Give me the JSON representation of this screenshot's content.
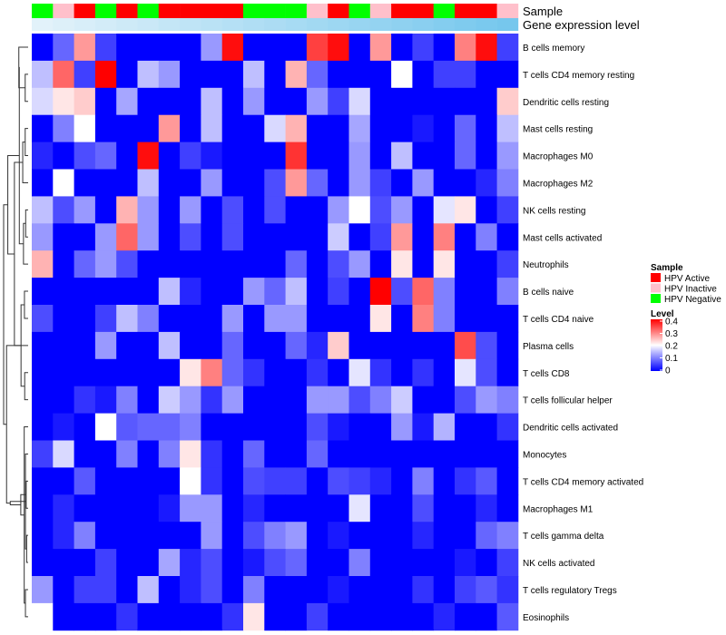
{
  "chart_data": {
    "type": "heatmap",
    "title": "",
    "annotation_tracks": [
      "Sample",
      "Gene expression level"
    ],
    "rows": [
      "B cells memory",
      "T cells CD4 memory resting",
      "Dendritic cells resting",
      "Mast cells resting",
      "Macrophages M0",
      "Macrophages M2",
      "NK cells resting",
      "Mast cells activated",
      "Neutrophils",
      "B cells naive",
      "T cells CD4 naive",
      "Plasma cells",
      "T cells CD8",
      "T cells follicular helper",
      "Dendritic cells activated",
      "Monocytes",
      "T cells CD4 memory activated",
      "Macrophages M1",
      "T cells gamma delta",
      "NK cells activated",
      "T cells regulatory  Tregs",
      "Eosinophils"
    ],
    "sample_groups": [
      "Negative",
      "Inactive",
      "Active",
      "Negative",
      "Active",
      "Negative",
      "Active",
      "Active",
      "Active",
      "Active",
      "Negative",
      "Negative",
      "Negative",
      "Inactive",
      "Active",
      "Negative",
      "Inactive",
      "Active",
      "Active",
      "Negative",
      "Active",
      "Active",
      "Inactive"
    ],
    "expression_level": [
      0.02,
      0.06,
      0.1,
      0.14,
      0.18,
      0.22,
      0.27,
      0.31,
      0.35,
      0.39,
      0.43,
      0.47,
      0.51,
      0.55,
      0.59,
      0.63,
      0.67,
      0.71,
      0.75,
      0.8,
      0.84,
      0.88,
      0.92
    ],
    "values": [
      [
        0.0,
        0.08,
        0.28,
        0.05,
        0.0,
        0.0,
        0.0,
        0.0,
        0.12,
        0.39,
        0.0,
        0.0,
        0.0,
        0.35,
        0.39,
        0.0,
        0.28,
        0.0,
        0.05,
        0.0,
        0.3,
        0.39,
        0.05
      ],
      [
        0.15,
        0.32,
        0.05,
        0.4,
        0.0,
        0.15,
        0.12,
        0.0,
        0.0,
        0.0,
        0.15,
        0.0,
        0.26,
        0.08,
        0.0,
        0.0,
        0.0,
        0.2,
        0.0,
        0.05,
        0.05,
        0.0,
        0.0
      ],
      [
        0.17,
        0.22,
        0.24,
        0.0,
        0.13,
        0.0,
        0.0,
        0.0,
        0.15,
        0.0,
        0.12,
        0.0,
        0.0,
        0.12,
        0.05,
        0.17,
        0.0,
        0.0,
        0.0,
        0.0,
        0.0,
        0.0,
        0.24
      ],
      [
        0.0,
        0.1,
        0.2,
        0.0,
        0.0,
        0.0,
        0.28,
        0.0,
        0.15,
        0.0,
        0.0,
        0.17,
        0.26,
        0.0,
        0.0,
        0.13,
        0.0,
        0.0,
        0.02,
        0.0,
        0.08,
        0.0,
        0.15
      ],
      [
        0.03,
        0.0,
        0.06,
        0.08,
        0.0,
        0.39,
        0.0,
        0.05,
        0.02,
        0.0,
        0.0,
        0.0,
        0.36,
        0.0,
        0.0,
        0.12,
        0.0,
        0.15,
        0.0,
        0.0,
        0.08,
        0.0,
        0.12
      ],
      [
        0.0,
        0.2,
        0.0,
        0.0,
        0.0,
        0.15,
        0.0,
        0.0,
        0.12,
        0.0,
        0.0,
        0.06,
        0.28,
        0.08,
        0.0,
        0.12,
        0.05,
        0.0,
        0.12,
        0.0,
        0.0,
        0.03,
        0.1
      ],
      [
        0.15,
        0.06,
        0.12,
        0.0,
        0.26,
        0.12,
        0.0,
        0.12,
        0.0,
        0.06,
        0.0,
        0.06,
        0.0,
        0.0,
        0.12,
        0.2,
        0.06,
        0.12,
        0.0,
        0.18,
        0.22,
        0.0,
        0.05
      ],
      [
        0.12,
        0.0,
        0.0,
        0.12,
        0.32,
        0.12,
        0.0,
        0.06,
        0.0,
        0.06,
        0.0,
        0.0,
        0.0,
        0.0,
        0.16,
        0.0,
        0.05,
        0.28,
        0.0,
        0.3,
        0.0,
        0.1,
        0.0
      ],
      [
        0.26,
        0.0,
        0.08,
        0.12,
        0.06,
        0.0,
        0.0,
        0.0,
        0.0,
        0.0,
        0.0,
        0.0,
        0.08,
        0.0,
        0.06,
        0.12,
        0.0,
        0.22,
        0.0,
        0.22,
        0.0,
        0.0,
        0.05
      ],
      [
        0.0,
        0.0,
        0.0,
        0.0,
        0.0,
        0.0,
        0.15,
        0.03,
        0.0,
        0.0,
        0.12,
        0.08,
        0.15,
        0.0,
        0.05,
        0.0,
        0.4,
        0.06,
        0.32,
        0.1,
        0.0,
        0.0,
        0.1
      ],
      [
        0.06,
        0.0,
        0.0,
        0.05,
        0.15,
        0.1,
        0.0,
        0.0,
        0.0,
        0.12,
        0.0,
        0.12,
        0.12,
        0.0,
        0.0,
        0.0,
        0.22,
        0.0,
        0.3,
        0.1,
        0.0,
        0.0,
        0.0
      ],
      [
        0.0,
        0.0,
        0.0,
        0.12,
        0.0,
        0.0,
        0.15,
        0.0,
        0.0,
        0.08,
        0.0,
        0.0,
        0.08,
        0.03,
        0.24,
        0.0,
        0.0,
        0.0,
        0.0,
        0.0,
        0.34,
        0.06,
        0.0
      ],
      [
        0.0,
        0.0,
        0.0,
        0.0,
        0.0,
        0.0,
        0.0,
        0.22,
        0.3,
        0.08,
        0.04,
        0.0,
        0.0,
        0.04,
        0.0,
        0.18,
        0.04,
        0.0,
        0.04,
        0.0,
        0.18,
        0.06,
        0.0
      ],
      [
        0.0,
        0.0,
        0.04,
        0.02,
        0.1,
        0.0,
        0.16,
        0.12,
        0.04,
        0.12,
        0.0,
        0.0,
        0.0,
        0.12,
        0.12,
        0.06,
        0.1,
        0.16,
        0.0,
        0.0,
        0.06,
        0.12,
        0.1
      ],
      [
        0.0,
        0.02,
        0.0,
        0.2,
        0.07,
        0.08,
        0.08,
        0.1,
        0.0,
        0.0,
        0.0,
        0.0,
        0.0,
        0.06,
        0.02,
        0.0,
        0.0,
        0.12,
        0.02,
        0.14,
        0.0,
        0.0,
        0.04
      ],
      [
        0.05,
        0.17,
        0.0,
        0.0,
        0.1,
        0.0,
        0.1,
        0.22,
        0.04,
        0.0,
        0.08,
        0.0,
        0.0,
        0.08,
        0.0,
        0.0,
        0.0,
        0.0,
        0.0,
        0.0,
        0.0,
        0.0,
        0.0
      ],
      [
        0.0,
        0.0,
        0.07,
        0.0,
        0.0,
        0.0,
        0.0,
        0.2,
        0.04,
        0.0,
        0.06,
        0.05,
        0.05,
        0.0,
        0.06,
        0.05,
        0.03,
        0.0,
        0.1,
        0.0,
        0.04,
        0.07,
        0.0
      ],
      [
        0.0,
        0.03,
        0.0,
        0.0,
        0.0,
        0.0,
        0.02,
        0.12,
        0.12,
        0.0,
        0.03,
        0.0,
        0.0,
        0.0,
        0.0,
        0.18,
        0.0,
        0.0,
        0.06,
        0.0,
        0.0,
        0.03,
        0.0
      ],
      [
        0.0,
        0.03,
        0.1,
        0.0,
        0.0,
        0.0,
        0.0,
        0.0,
        0.12,
        0.0,
        0.06,
        0.1,
        0.12,
        0.0,
        0.02,
        0.0,
        0.0,
        0.0,
        0.03,
        0.0,
        0.0,
        0.08,
        0.1
      ],
      [
        0.0,
        0.0,
        0.0,
        0.05,
        0.0,
        0.0,
        0.13,
        0.03,
        0.06,
        0.0,
        0.02,
        0.06,
        0.08,
        0.0,
        0.0,
        0.1,
        0.0,
        0.0,
        0.0,
        0.0,
        0.02,
        0.0,
        0.05
      ],
      [
        0.12,
        0.0,
        0.05,
        0.05,
        0.0,
        0.15,
        0.0,
        0.03,
        0.06,
        0.0,
        0.1,
        0.0,
        0.0,
        0.0,
        0.02,
        0.0,
        0.0,
        0.0,
        0.04,
        0.0,
        0.05,
        0.07,
        0.04
      ],
      [
        0.2,
        0.0,
        0.0,
        0.0,
        0.04,
        0.0,
        0.0,
        0.0,
        0.0,
        0.04,
        0.22,
        0.0,
        0.0,
        0.05,
        0.0,
        0.0,
        0.0,
        0.0,
        0.0,
        0.03,
        0.0,
        0.0,
        0.07
      ]
    ],
    "row_dendrogram": [
      [
        1,
        2,
        0.12
      ],
      [
        3,
        4,
        0.12
      ],
      [
        6,
        7,
        0.1
      ],
      [
        9,
        10,
        0.15
      ],
      [
        12,
        13,
        0.14
      ],
      [
        16,
        17,
        0.08
      ],
      [
        18,
        19,
        0.06
      ],
      [
        20,
        21,
        0.11
      ],
      [
        5,
        23,
        0.22
      ],
      [
        8,
        24,
        0.19
      ],
      [
        15,
        28,
        0.11
      ],
      [
        14,
        29,
        0.16
      ],
      [
        0,
        22,
        0.38
      ],
      [
        25,
        26,
        0.29
      ],
      [
        27,
        33,
        0.3
      ],
      [
        31,
        34,
        0.36
      ],
      [
        30,
        35,
        0.56
      ],
      [
        32,
        36,
        0.73
      ],
      [
        37,
        38,
        0.83
      ],
      [
        11,
        39,
        0.88
      ],
      [
        40,
        41,
        1.0
      ]
    ],
    "legend": {
      "sample_title": "Sample",
      "sample_entries": [
        {
          "label": "HPV Active",
          "color": "#ff0000"
        },
        {
          "label": "HPV Inactive",
          "color": "#ffc0cb"
        },
        {
          "label": "HPV Negative",
          "color": "#00ff00"
        }
      ],
      "level_title": "Level",
      "level_ticks": [
        0.4,
        0.3,
        0.2,
        0.1,
        0
      ],
      "level_tick_labels": [
        "0.4",
        "0.3",
        "0.2",
        "0.1",
        "0"
      ],
      "placement": "right"
    },
    "color_scale": {
      "low": "#0000ff",
      "mid": "#ffffff",
      "high": "#ff0000",
      "min": 0,
      "mid_value": 0.2,
      "max": 0.4
    },
    "expression_colors": {
      "low": "#e4f3fa",
      "high": "#6cc3ec"
    }
  }
}
